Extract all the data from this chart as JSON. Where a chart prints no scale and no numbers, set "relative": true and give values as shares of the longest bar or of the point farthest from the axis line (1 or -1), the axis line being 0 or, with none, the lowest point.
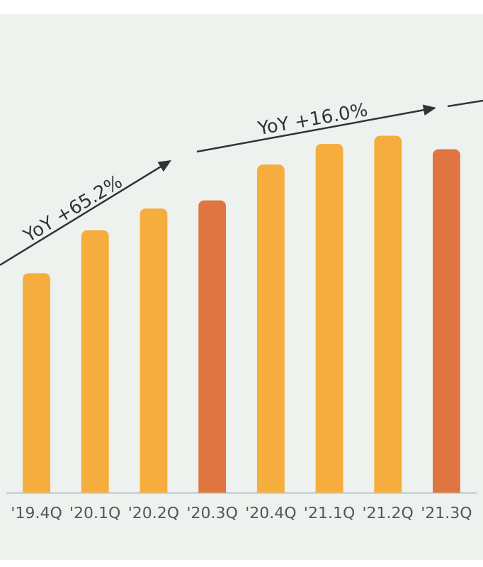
{
  "chart_data": {
    "type": "bar",
    "relative": true,
    "categories": [
      "'19.4Q",
      "'20.1Q",
      "'20.2Q",
      "'20.3Q",
      "'20.4Q",
      "'21.1Q",
      "'21.2Q",
      "'21.3Q"
    ],
    "values": [
      0.615,
      0.735,
      0.796,
      0.819,
      0.919,
      0.977,
      1,
      0.962
    ],
    "colors": [
      "#f5ae3d",
      "#f5ae3d",
      "#f5ae3d",
      "#e07542",
      "#f5ae3d",
      "#f5ae3d",
      "#f5ae3d",
      "#e07542"
    ],
    "annotations": [
      "YoY +65.2%",
      "YoY +16.0%"
    ],
    "grid": false,
    "legend": false
  }
}
